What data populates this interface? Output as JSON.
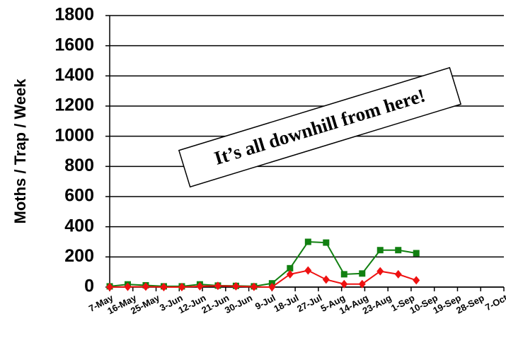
{
  "chart_data": {
    "type": "line",
    "y_label": "Moths / Trap / Week",
    "annotation": "It’s all downhill from here!",
    "x": [
      127,
      134,
      141,
      148,
      155,
      162,
      169,
      176,
      183,
      190,
      197,
      204,
      211,
      218,
      225,
      232,
      239,
      246
    ],
    "series": [
      {
        "color": "#118011",
        "marker": "square",
        "values": [
          5,
          18,
          12,
          5,
          5,
          18,
          10,
          8,
          5,
          25,
          125,
          300,
          295,
          85,
          90,
          245,
          245,
          225
        ]
      },
      {
        "color": "#ee1111",
        "marker": "diamond",
        "values": [
          0,
          2,
          3,
          0,
          0,
          5,
          8,
          5,
          2,
          0,
          85,
          110,
          50,
          20,
          20,
          105,
          85,
          45
        ]
      }
    ],
    "xlim": [
      127,
      280
    ],
    "xticks": [
      {
        "value": 127,
        "label": "7-May"
      },
      {
        "value": 136,
        "label": "16-May"
      },
      {
        "value": 145,
        "label": "25-May"
      },
      {
        "value": 154,
        "label": "3-Jun"
      },
      {
        "value": 163,
        "label": "12-Jun"
      },
      {
        "value": 172,
        "label": "21-Jun"
      },
      {
        "value": 181,
        "label": "30-Jun"
      },
      {
        "value": 190,
        "label": "9-Jul"
      },
      {
        "value": 199,
        "label": "18-Jul"
      },
      {
        "value": 208,
        "label": "27-Jul"
      },
      {
        "value": 217,
        "label": "5-Aug"
      },
      {
        "value": 226,
        "label": "14-Aug"
      },
      {
        "value": 235,
        "label": "23-Aug"
      },
      {
        "value": 244,
        "label": "1-Sep"
      },
      {
        "value": 253,
        "label": "10-Sep"
      },
      {
        "value": 262,
        "label": "19-Sep"
      },
      {
        "value": 271,
        "label": "28-Sep"
      },
      {
        "value": 280,
        "label": "7-Oct"
      }
    ],
    "ylim": [
      0,
      1800
    ],
    "yticks": [
      0,
      200,
      400,
      600,
      800,
      1000,
      1200,
      1400,
      1600,
      1800
    ],
    "grid": true
  }
}
